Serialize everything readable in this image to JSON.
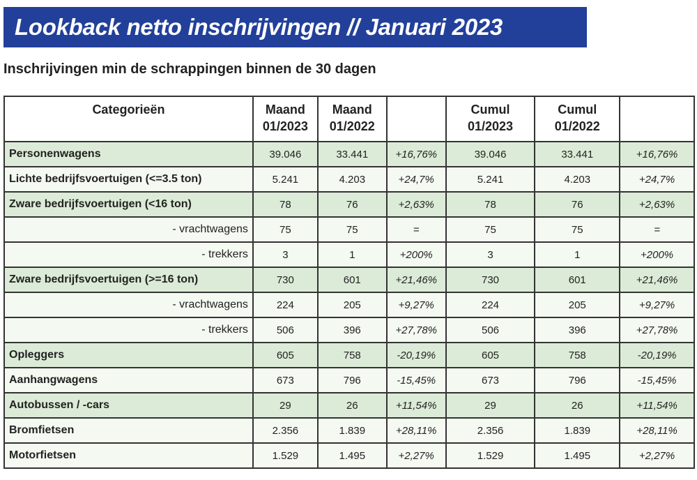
{
  "title": "Lookback netto inschrijvingen // Januari 2023",
  "subtitle": "Inschrijvingen min de schrappingen binnen de 30 dagen",
  "colors": {
    "banner": "#22409a",
    "row_green": "#dcebd7",
    "row_light": "#f4f9f2"
  },
  "table": {
    "headers": [
      "Categorieën",
      "Maand 01/2023",
      "Maand 01/2022",
      "",
      "Cumul 01/2023",
      "Cumul 01/2022",
      ""
    ],
    "rows": [
      {
        "label": "Personenwagens",
        "sub": false,
        "shade": "green",
        "values": [
          "39.046",
          "33.441",
          "+16,76%",
          "39.046",
          "33.441",
          "+16,76%"
        ]
      },
      {
        "label": "Lichte bedrijfsvoertuigen (<=3.5 ton)",
        "sub": false,
        "shade": "light",
        "values": [
          "5.241",
          "4.203",
          "+24,7%",
          "5.241",
          "4.203",
          "+24,7%"
        ]
      },
      {
        "label": "Zware bedrijfsvoertuigen (<16 ton)",
        "sub": false,
        "shade": "green",
        "values": [
          "78",
          "76",
          "+2,63%",
          "78",
          "76",
          "+2,63%"
        ]
      },
      {
        "label": "- vrachtwagens",
        "sub": true,
        "shade": "light",
        "values": [
          "75",
          "75",
          "=",
          "75",
          "75",
          "="
        ]
      },
      {
        "label": "- trekkers",
        "sub": true,
        "shade": "light",
        "values": [
          "3",
          "1",
          "+200%",
          "3",
          "1",
          "+200%"
        ]
      },
      {
        "label": "Zware bedrijfsvoertuigen (>=16 ton)",
        "sub": false,
        "shade": "green",
        "values": [
          "730",
          "601",
          "+21,46%",
          "730",
          "601",
          "+21,46%"
        ]
      },
      {
        "label": "- vrachtwagens",
        "sub": true,
        "shade": "light",
        "values": [
          "224",
          "205",
          "+9,27%",
          "224",
          "205",
          "+9,27%"
        ]
      },
      {
        "label": "- trekkers",
        "sub": true,
        "shade": "light",
        "values": [
          "506",
          "396",
          "+27,78%",
          "506",
          "396",
          "+27,78%"
        ]
      },
      {
        "label": "Opleggers",
        "sub": false,
        "shade": "green",
        "values": [
          "605",
          "758",
          "-20,19%",
          "605",
          "758",
          "-20,19%"
        ]
      },
      {
        "label": "Aanhangwagens",
        "sub": false,
        "shade": "light",
        "values": [
          "673",
          "796",
          "-15,45%",
          "673",
          "796",
          "-15,45%"
        ]
      },
      {
        "label": "Autobussen / -cars",
        "sub": false,
        "shade": "green",
        "values": [
          "29",
          "26",
          "+11,54%",
          "29",
          "26",
          "+11,54%"
        ]
      },
      {
        "label": "Bromfietsen",
        "sub": false,
        "shade": "light",
        "values": [
          "2.356",
          "1.839",
          "+28,11%",
          "2.356",
          "1.839",
          "+28,11%"
        ]
      },
      {
        "label": "Motorfietsen",
        "sub": false,
        "shade": "light",
        "values": [
          "1.529",
          "1.495",
          "+2,27%",
          "1.529",
          "1.495",
          "+2,27%"
        ]
      }
    ]
  }
}
